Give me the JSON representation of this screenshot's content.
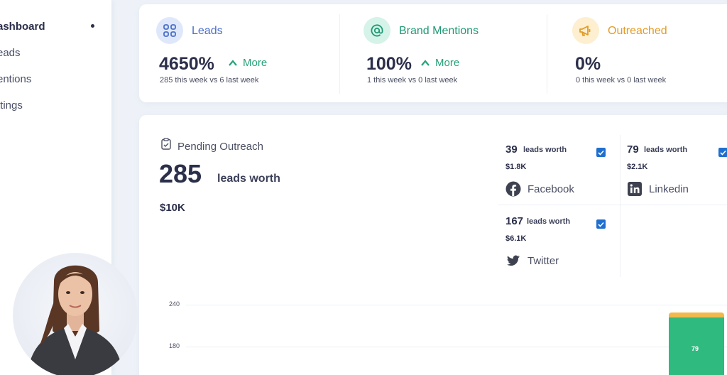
{
  "sidebar": {
    "items": [
      {
        "label": "ashboard",
        "active": true
      },
      {
        "label": "eads"
      },
      {
        "label": "entions"
      },
      {
        "label": "ttings"
      }
    ]
  },
  "stats": [
    {
      "title": "Leads",
      "value": "4650%",
      "trend": "More",
      "sub": "285 this week vs 6 last week",
      "icon": "grid-icon",
      "color": "#4a6fc8",
      "icon_bg": "#dfe8fb"
    },
    {
      "title": "Brand Mentions",
      "value": "100%",
      "trend": "More",
      "sub": "1 this week vs 0 last week",
      "icon": "at-icon",
      "color": "#1f9a75",
      "icon_bg": "#d5f3e8"
    },
    {
      "title": "Outreached",
      "value": "0%",
      "trend": "",
      "sub": "0 this week vs 0 last week",
      "icon": "megaphone-icon",
      "color": "#e39b25",
      "icon_bg": "#fdefcf"
    }
  ],
  "pending": {
    "title": "Pending Outreach",
    "count": "285",
    "worth_label": "leads worth",
    "amount": "$10K"
  },
  "sources": [
    {
      "count": "39",
      "worth_label": "leads worth",
      "amount": "$1.8K",
      "name": "Facebook",
      "icon": "facebook-icon",
      "checked": true
    },
    {
      "count": "79",
      "worth_label": "leads worth",
      "amount": "$2.1K",
      "name": "Linkedin",
      "icon": "linkedin-icon",
      "checked": true
    },
    {
      "count": "167",
      "worth_label": "leads worth",
      "amount": "$6.1K",
      "name": "Twitter",
      "icon": "twitter-icon",
      "checked": true
    }
  ],
  "chart_data": {
    "type": "bar",
    "y_ticks": [
      "240",
      "180"
    ],
    "visible_bar_label": "79",
    "colors": {
      "bar_main": "#2fba7f",
      "bar_top": "#f2b84b",
      "bar_bottom": "#2f6fd6"
    }
  }
}
